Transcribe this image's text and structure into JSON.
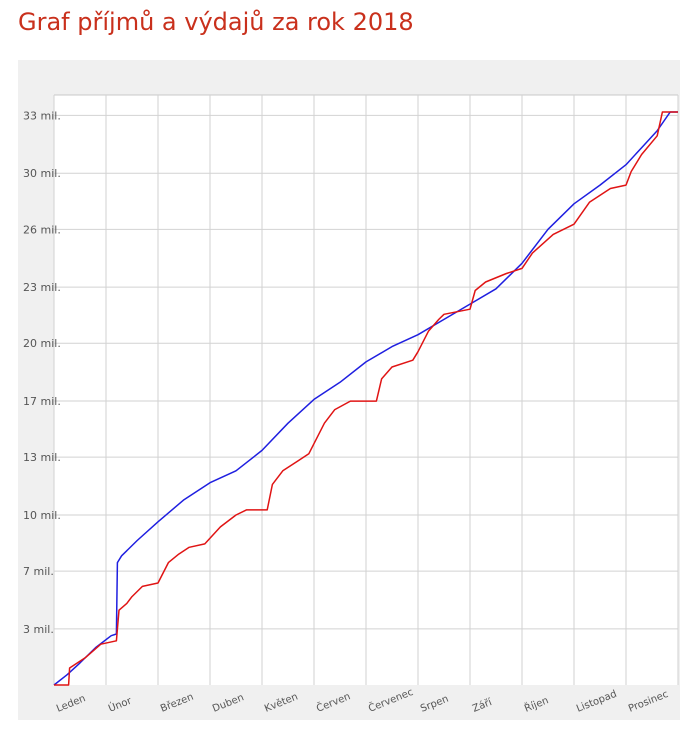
{
  "title": "Graf příjmů a výdajů za rok 2018",
  "chart_data": {
    "type": "line",
    "title": "",
    "xlabel": "",
    "ylabel": "",
    "categories": [
      "Leden",
      "Únor",
      "Březen",
      "Duben",
      "Květen",
      "Červen",
      "Červenec",
      "Srpen",
      "Září",
      "Říjen",
      "Listopad",
      "Prosinec"
    ],
    "ytick_labels": [
      "3 mil.",
      "7 mil.",
      "10 mil.",
      "13 mil.",
      "17 mil.",
      "20 mil.",
      "23 mil.",
      "26 mil.",
      "30 mil.",
      "33 mil."
    ],
    "ytick_values": [
      3.3,
      6.7,
      10.0,
      13.4,
      16.7,
      20.1,
      23.4,
      26.8,
      30.1,
      33.5
    ],
    "ylim": [
      0,
      34.7
    ],
    "xlim": [
      0,
      12
    ],
    "grid": true,
    "legend": "none",
    "series": [
      {
        "color": "#1f1fe0",
        "x": [
          0,
          0.25,
          0.5,
          0.8,
          1.1,
          1.2,
          1.22,
          1.3,
          1.6,
          2.0,
          2.5,
          3.0,
          3.5,
          4.0,
          4.5,
          5.0,
          5.5,
          6.0,
          6.5,
          7.0,
          7.5,
          8.0,
          8.5,
          9.0,
          9.5,
          10.0,
          10.5,
          11.0,
          11.3,
          11.6,
          11.85,
          12.0
        ],
        "y": [
          0,
          0.6,
          1.3,
          2.2,
          2.9,
          3.0,
          7.2,
          7.6,
          8.5,
          9.6,
          10.9,
          11.9,
          12.6,
          13.8,
          15.4,
          16.8,
          17.8,
          19.0,
          19.9,
          20.6,
          21.5,
          22.4,
          23.3,
          24.8,
          26.8,
          28.3,
          29.4,
          30.6,
          31.6,
          32.6,
          33.7,
          33.7
        ]
      },
      {
        "color": "#e01414",
        "x": [
          0,
          0.28,
          0.3,
          0.6,
          0.9,
          1.2,
          1.25,
          1.4,
          1.5,
          1.7,
          2.0,
          2.2,
          2.4,
          2.6,
          2.9,
          3.2,
          3.5,
          3.7,
          4.1,
          4.2,
          4.4,
          4.7,
          4.9,
          5.2,
          5.4,
          5.7,
          6.2,
          6.3,
          6.5,
          6.9,
          7.0,
          7.2,
          7.4,
          7.5,
          8.0,
          8.1,
          8.3,
          8.7,
          9.0,
          9.2,
          9.6,
          10.0,
          10.3,
          10.7,
          11.0,
          11.1,
          11.3,
          11.6,
          11.7,
          12.0
        ],
        "y": [
          0,
          0,
          1.0,
          1.6,
          2.4,
          2.6,
          4.4,
          4.8,
          5.2,
          5.8,
          6.0,
          7.2,
          7.7,
          8.1,
          8.3,
          9.3,
          10.0,
          10.3,
          10.3,
          11.8,
          12.6,
          13.2,
          13.6,
          15.4,
          16.2,
          16.7,
          16.7,
          18.0,
          18.7,
          19.1,
          19.6,
          20.8,
          21.5,
          21.8,
          22.1,
          23.2,
          23.7,
          24.2,
          24.5,
          25.4,
          26.5,
          27.1,
          28.4,
          29.2,
          29.4,
          30.2,
          31.2,
          32.3,
          33.7,
          33.7
        ]
      }
    ]
  }
}
